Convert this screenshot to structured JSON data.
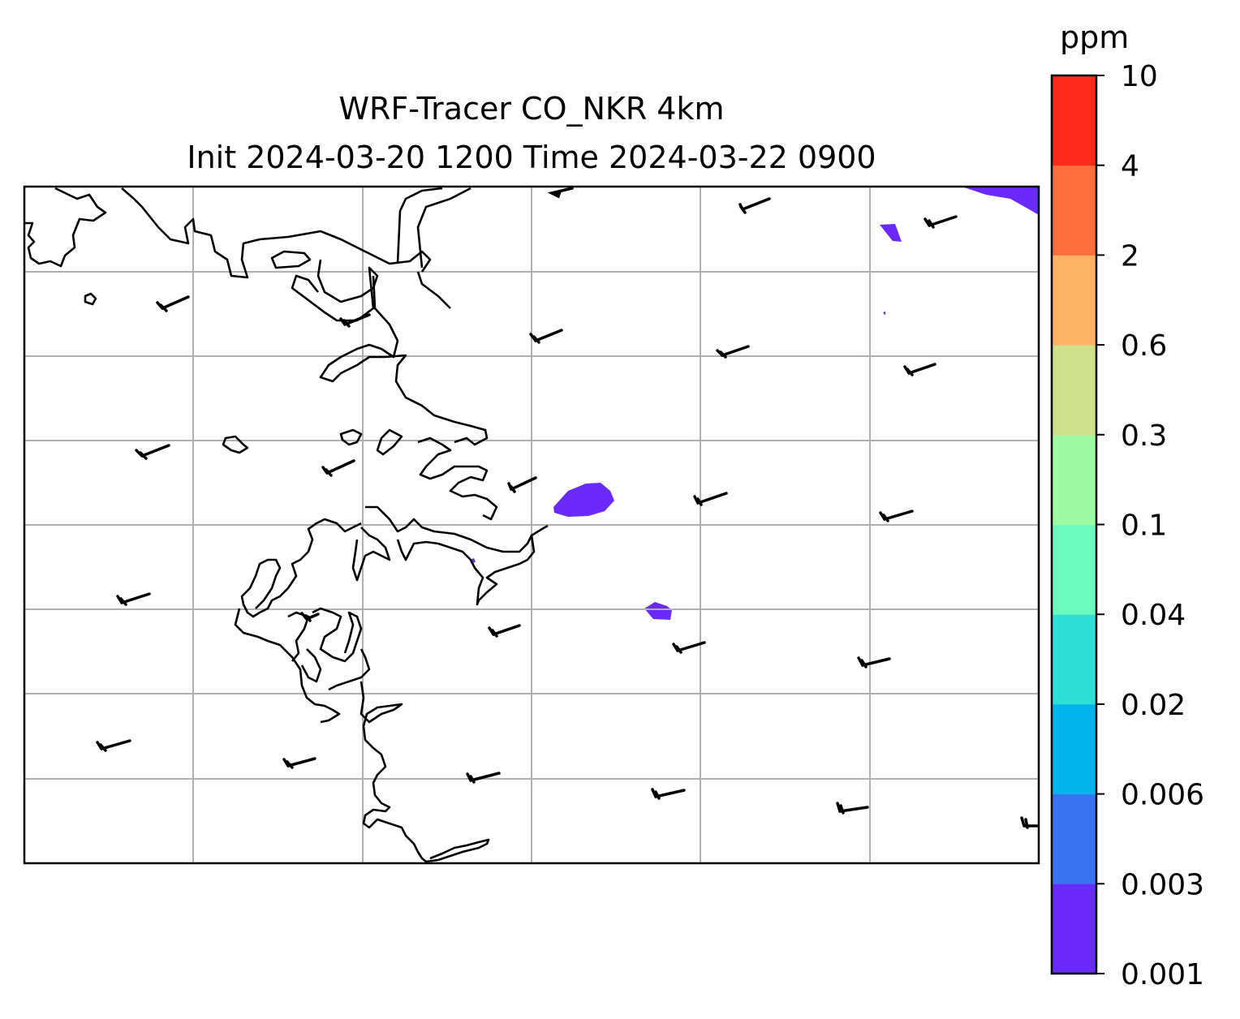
{
  "title": {
    "line1": "WRF-Tracer CO_NKR 4km",
    "line2": "Init 2024-03-20 1200 Time 2024-03-22 0900"
  },
  "colorbar": {
    "unit": "ppm",
    "levels": [
      "0.001",
      "0.003",
      "0.006",
      "0.02",
      "0.04",
      "0.1",
      "0.3",
      "0.6",
      "2",
      "4",
      "10"
    ],
    "colors": [
      "#6a2bfa",
      "#3a74f2",
      "#03b3ec",
      "#30dfd6",
      "#6bfbbe",
      "#9dfba3",
      "#cfe18a",
      "#fdb165",
      "#fd6f3e",
      "#fd2a1a"
    ]
  },
  "map": {
    "gridlines": true,
    "tracer_color": "#6a2bfa",
    "coastline_color": "#000000",
    "gridline_color": "#b0b0b0"
  }
}
